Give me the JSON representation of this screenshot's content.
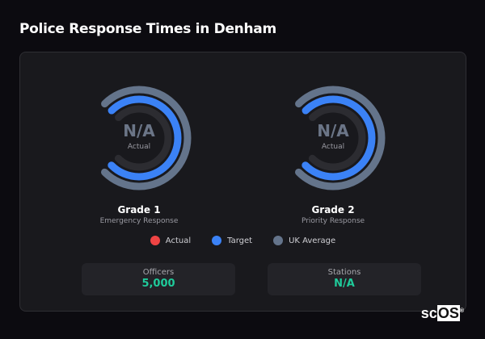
{
  "title": "Police Response Times in Denham",
  "gauges": [
    {
      "value": "N/A",
      "label": "Actual",
      "name": "Grade 1",
      "subtitle": "Emergency Response"
    },
    {
      "value": "N/A",
      "label": "Actual",
      "name": "Grade 2",
      "subtitle": "Priority Response"
    }
  ],
  "legend": [
    {
      "label": "Actual",
      "color": "#ef4444"
    },
    {
      "label": "Target",
      "color": "#3b82f6"
    },
    {
      "label": "UK Average",
      "color": "#64748b"
    }
  ],
  "stats": [
    {
      "label": "Officers",
      "value": "5,000"
    },
    {
      "label": "Stations",
      "value": "N/A"
    }
  ],
  "logo": "scOS"
}
